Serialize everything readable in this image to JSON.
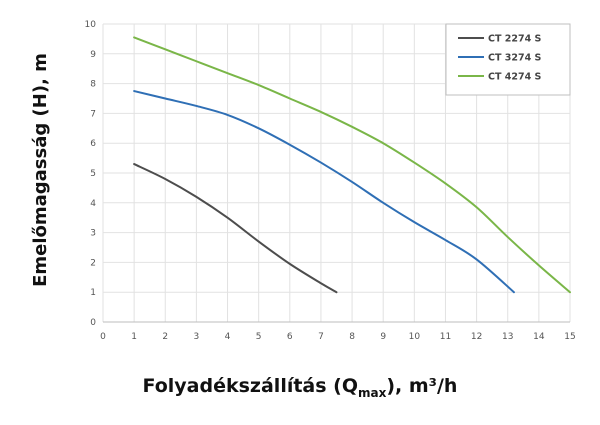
{
  "chart_data": {
    "type": "line",
    "title": "",
    "xlabel": {
      "prefix": "Folyadékszállítás (Q",
      "subscript": "max",
      "suffix": "), m³/h"
    },
    "ylabel": "Emelőmagasság (H), m",
    "xlim": [
      0,
      15
    ],
    "ylim": [
      0,
      10
    ],
    "xticks": [
      "0",
      "1",
      "2",
      "3",
      "4",
      "5",
      "6",
      "7",
      "8",
      "9",
      "10",
      "11",
      "12",
      "13",
      "14",
      "15"
    ],
    "yticks": [
      "0",
      "1",
      "2",
      "3",
      "4",
      "5",
      "6",
      "7",
      "8",
      "9",
      "10"
    ],
    "grid": true,
    "legend": "top-right",
    "series": [
      {
        "name": "CT 2274 S",
        "color": "#4d4d4d",
        "points": [
          [
            1,
            5.3
          ],
          [
            2,
            4.8
          ],
          [
            3,
            4.2
          ],
          [
            4,
            3.5
          ],
          [
            5,
            2.7
          ],
          [
            6,
            1.95
          ],
          [
            7,
            1.3
          ],
          [
            7.5,
            1.0
          ]
        ]
      },
      {
        "name": "CT 3274 S",
        "color": "#2f6fb5",
        "points": [
          [
            1,
            7.75
          ],
          [
            2,
            7.5
          ],
          [
            3,
            7.25
          ],
          [
            4,
            6.95
          ],
          [
            5,
            6.5
          ],
          [
            6,
            5.95
          ],
          [
            7,
            5.35
          ],
          [
            8,
            4.7
          ],
          [
            9,
            4.0
          ],
          [
            10,
            3.35
          ],
          [
            11,
            2.75
          ],
          [
            12,
            2.1
          ],
          [
            13.2,
            1.0
          ]
        ]
      },
      {
        "name": "CT 4274 S",
        "color": "#7ab648",
        "points": [
          [
            1,
            9.55
          ],
          [
            2,
            9.15
          ],
          [
            3,
            8.75
          ],
          [
            4,
            8.35
          ],
          [
            5,
            7.95
          ],
          [
            6,
            7.5
          ],
          [
            7,
            7.05
          ],
          [
            8,
            6.55
          ],
          [
            9,
            6.0
          ],
          [
            10,
            5.35
          ],
          [
            11,
            4.65
          ],
          [
            12,
            3.85
          ],
          [
            13,
            2.85
          ],
          [
            14,
            1.9
          ],
          [
            15,
            1.0
          ]
        ]
      }
    ]
  }
}
